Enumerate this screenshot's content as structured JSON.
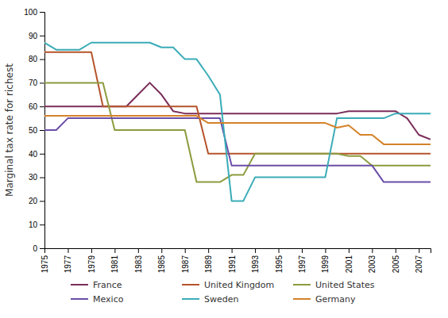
{
  "chart_data": {
    "type": "line",
    "y_label": "Marginal tax rate for richest",
    "x": [
      1975,
      1976,
      1977,
      1978,
      1979,
      1980,
      1981,
      1982,
      1983,
      1984,
      1985,
      1986,
      1987,
      1988,
      1989,
      1990,
      1991,
      1992,
      1993,
      1994,
      1995,
      1996,
      1997,
      1998,
      1999,
      2000,
      2001,
      2002,
      2003,
      2004,
      2005,
      2006,
      2007,
      2008
    ],
    "series": [
      {
        "name": "France",
        "color": "#7B2D5A",
        "values": [
          60,
          60,
          60,
          60,
          60,
          60,
          60,
          60,
          65,
          70,
          65,
          58,
          57,
          57,
          57,
          57,
          57,
          57,
          57,
          57,
          57,
          57,
          57,
          57,
          57,
          57,
          58,
          58,
          58,
          58,
          58,
          55,
          48,
          46
        ]
      },
      {
        "name": "United Kingdom",
        "color": "#B5532A",
        "values": [
          83,
          83,
          83,
          83,
          83,
          60,
          60,
          60,
          60,
          60,
          60,
          60,
          60,
          60,
          40,
          40,
          40,
          40,
          40,
          40,
          40,
          40,
          40,
          40,
          40,
          40,
          40,
          40,
          40,
          40,
          40,
          40,
          40,
          40
        ]
      },
      {
        "name": "United States",
        "color": "#8C9B3E",
        "values": [
          70,
          70,
          70,
          70,
          70,
          70,
          50,
          50,
          50,
          50,
          50,
          50,
          50,
          28,
          28,
          28,
          31,
          31,
          40,
          40,
          40,
          40,
          40,
          40,
          40,
          40,
          39,
          39,
          35,
          35,
          35,
          35,
          35,
          35
        ]
      },
      {
        "name": "Mexico",
        "color": "#6B4EA8",
        "values": [
          50,
          50,
          55,
          55,
          55,
          55,
          55,
          55,
          55,
          55,
          55,
          55,
          55,
          55,
          55,
          55,
          35,
          35,
          35,
          35,
          35,
          35,
          35,
          35,
          35,
          35,
          35,
          35,
          35,
          28,
          28,
          28,
          28,
          28
        ]
      },
      {
        "name": "Sweden",
        "color": "#3AACB8",
        "values": [
          87,
          84,
          84,
          84,
          87,
          87,
          87,
          87,
          87,
          87,
          85,
          85,
          80,
          80,
          73,
          65,
          20,
          20,
          30,
          30,
          30,
          30,
          30,
          30,
          30,
          55,
          55,
          55,
          55,
          55,
          57,
          57,
          57,
          57
        ]
      },
      {
        "name": "Germany",
        "color": "#D4822A",
        "values": [
          56,
          56,
          56,
          56,
          56,
          56,
          56,
          56,
          56,
          56,
          56,
          56,
          56,
          56,
          53,
          53,
          53,
          53,
          53,
          53,
          53,
          53,
          53,
          53,
          53,
          51,
          52,
          48,
          48,
          44,
          44,
          44,
          44,
          44
        ]
      }
    ],
    "xlim": [
      1975,
      2008
    ],
    "xticks": [
      1975,
      1977,
      1979,
      1981,
      1983,
      1985,
      1987,
      1989,
      1991,
      1993,
      1995,
      1997,
      1999,
      2001,
      2003,
      2005,
      2007
    ],
    "ylim": [
      0,
      100
    ],
    "yticks": [
      0,
      10,
      20,
      30,
      40,
      50,
      60,
      70,
      80,
      90,
      100
    ],
    "grid": false,
    "legend": "bottom"
  }
}
